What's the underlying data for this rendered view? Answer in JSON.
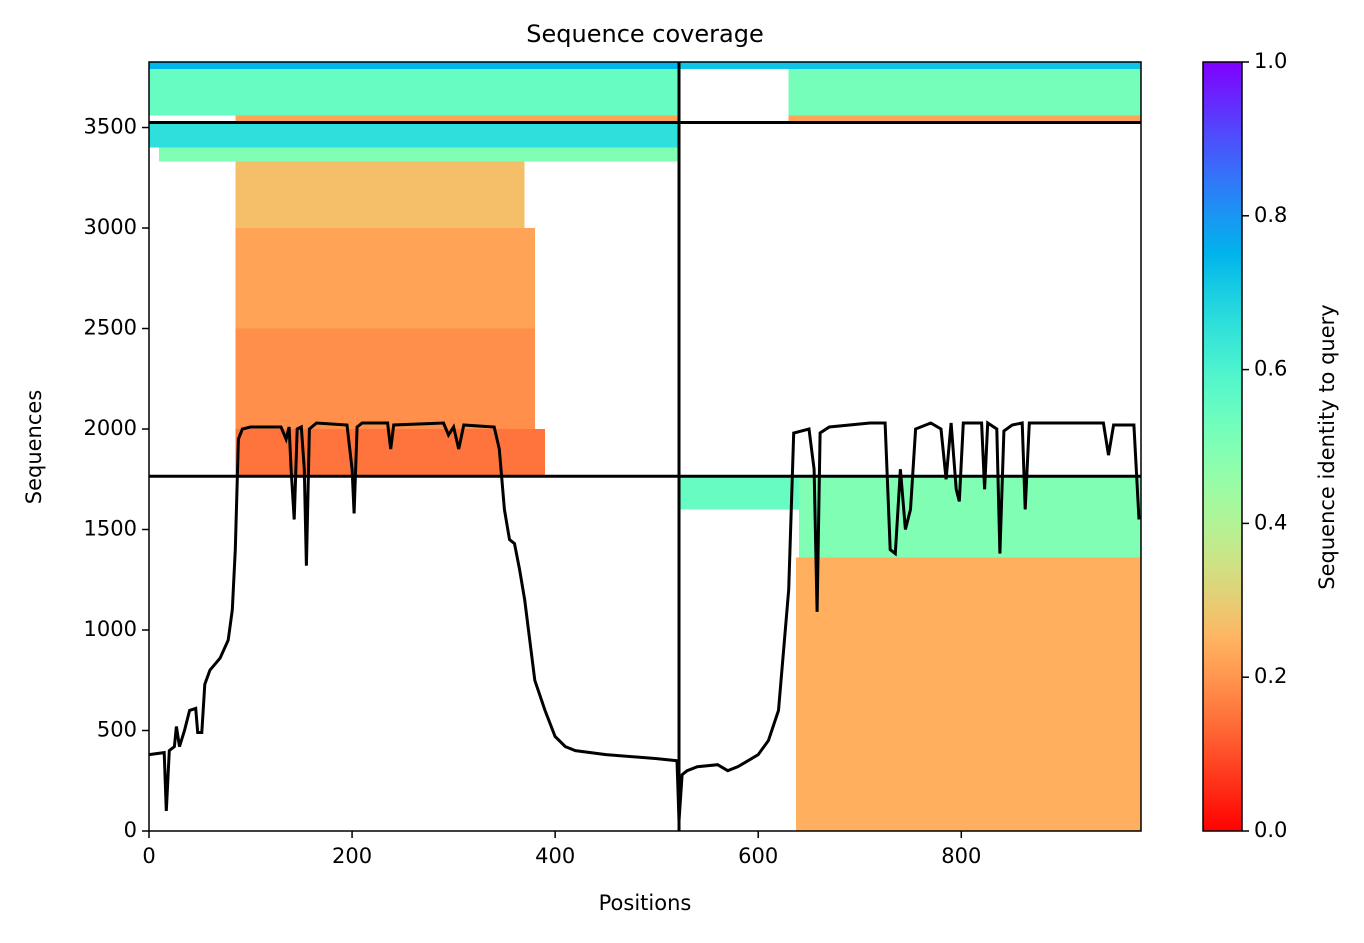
{
  "chart_data": {
    "type": "heatmap",
    "title": "Sequence coverage",
    "xlabel": "Positions",
    "ylabel": "Sequences",
    "xlim": [
      0,
      977
    ],
    "ylim": [
      0,
      3826
    ],
    "xticks": [
      0,
      200,
      400,
      600,
      800
    ],
    "yticks": [
      0,
      500,
      1000,
      1500,
      2000,
      2500,
      3000,
      3500
    ],
    "colormap": "rainbow_r",
    "colorbar": {
      "label": "Sequence identity to query",
      "lim": [
        0,
        1
      ],
      "ticks": [
        {
          "value": 0,
          "label": "0.0"
        },
        {
          "value": 0.2,
          "label": "0.2"
        },
        {
          "value": 0.4,
          "label": "0.4"
        },
        {
          "value": 0.6,
          "label": "0.6"
        },
        {
          "value": 0.8,
          "label": "0.8"
        },
        {
          "value": 1,
          "label": "1.0"
        }
      ]
    },
    "blocks": [
      {
        "x": [
          0,
          522
        ],
        "y": [
          3790,
          3826
        ],
        "identity": 0.75
      },
      {
        "x": [
          0,
          522
        ],
        "y": [
          3560,
          3790
        ],
        "identity": 0.55
      },
      {
        "x": [
          85,
          522
        ],
        "y": [
          3525,
          3560
        ],
        "identity": 0.22
      },
      {
        "x": [
          522,
          977
        ],
        "y": [
          3790,
          3826
        ],
        "identity": 0.72
      },
      {
        "x": [
          630,
          977
        ],
        "y": [
          3560,
          3790
        ],
        "identity": 0.52
      },
      {
        "x": [
          630,
          977
        ],
        "y": [
          3525,
          3560
        ],
        "identity": 0.22
      },
      {
        "x": [
          0,
          522
        ],
        "y": [
          3400,
          3525
        ],
        "identity": 0.66
      },
      {
        "x": [
          10,
          522
        ],
        "y": [
          3330,
          3400
        ],
        "identity": 0.5
      },
      {
        "x": [
          85,
          370
        ],
        "y": [
          3000,
          3330
        ],
        "identity": 0.27
      },
      {
        "x": [
          85,
          380
        ],
        "y": [
          2500,
          3000
        ],
        "identity": 0.22
      },
      {
        "x": [
          85,
          380
        ],
        "y": [
          2000,
          2500
        ],
        "identity": 0.19
      },
      {
        "x": [
          85,
          390
        ],
        "y": [
          1765,
          2000
        ],
        "identity": 0.15
      },
      {
        "x": [
          640,
          977
        ],
        "y": [
          1360,
          1765
        ],
        "identity": 0.5
      },
      {
        "x": [
          522,
          640
        ],
        "y": [
          1600,
          1765
        ],
        "identity": 0.55
      },
      {
        "x": [
          637,
          977
        ],
        "y": [
          0,
          1360
        ],
        "identity": 0.24
      }
    ],
    "boundaries": {
      "x": [
        522
      ],
      "y": [
        1765,
        3525
      ]
    },
    "coverage": {
      "color": "#000000",
      "x": [
        0,
        15,
        17,
        20,
        25,
        27,
        30,
        35,
        40,
        46,
        48,
        52,
        55,
        60,
        70,
        78,
        82,
        85,
        88,
        92,
        100,
        130,
        135,
        138,
        140,
        143,
        146,
        150,
        153,
        155,
        158,
        165,
        195,
        200,
        202,
        205,
        210,
        235,
        238,
        241,
        290,
        295,
        300,
        305,
        310,
        340,
        345,
        350,
        355,
        360,
        365,
        370,
        380,
        390,
        400,
        410,
        420,
        450,
        500,
        520,
        522,
        525,
        530,
        540,
        560,
        570,
        580,
        590,
        600,
        610,
        620,
        630,
        635,
        650,
        655,
        658,
        661,
        670,
        710,
        725,
        730,
        735,
        740,
        745,
        750,
        755,
        770,
        780,
        785,
        790,
        795,
        798,
        802,
        820,
        823,
        826,
        835,
        838,
        842,
        850,
        860,
        863,
        867,
        940,
        945,
        950,
        970,
        975
      ],
      "values": [
        380,
        390,
        100,
        400,
        420,
        520,
        420,
        500,
        600,
        610,
        490,
        490,
        730,
        800,
        860,
        950,
        1100,
        1400,
        1950,
        2000,
        2010,
        2010,
        1950,
        2010,
        1800,
        1550,
        2000,
        2010,
        1800,
        1320,
        2000,
        2030,
        2020,
        1800,
        1580,
        2010,
        2030,
        2030,
        1900,
        2020,
        2030,
        1970,
        2010,
        1900,
        2020,
        2010,
        1900,
        1600,
        1450,
        1430,
        1300,
        1150,
        750,
        600,
        470,
        420,
        400,
        380,
        360,
        350,
        50,
        280,
        300,
        320,
        330,
        300,
        320,
        350,
        380,
        450,
        600,
        1200,
        1980,
        2000,
        1800,
        1090,
        1980,
        2010,
        2030,
        2030,
        1400,
        1380,
        1800,
        1500,
        1600,
        2000,
        2030,
        2000,
        1750,
        2030,
        1700,
        1640,
        2030,
        2030,
        1700,
        2030,
        2000,
        1380,
        1990,
        2020,
        2030,
        1600,
        2030,
        2030,
        1870,
        2020,
        2020,
        1550
      ]
    }
  }
}
